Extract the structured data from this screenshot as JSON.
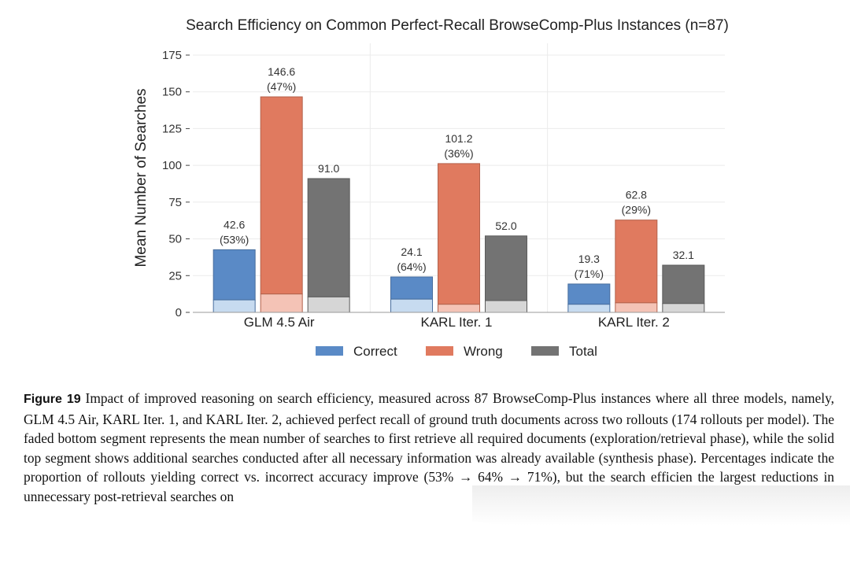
{
  "chart_data": {
    "type": "bar",
    "title": "Search Efficiency on Common Perfect-Recall BrowseComp-Plus Instances (n=87)",
    "ylabel": "Mean Number of Searches",
    "xlabel": "",
    "ylim": [
      0,
      175
    ],
    "yticks": [
      0,
      25,
      50,
      75,
      100,
      125,
      150,
      175
    ],
    "grid": true,
    "categories": [
      "GLM 4.5 Air",
      "KARL Iter. 1",
      "KARL Iter. 2"
    ],
    "series": [
      {
        "name": "Correct",
        "color": "#5a8ac6",
        "faded_color": "#c7dbf0",
        "values": [
          42.6,
          24.1,
          19.3
        ],
        "retrieval_values": [
          8.5,
          9.0,
          5.5
        ],
        "value_labels": [
          "42.6",
          "24.1",
          "19.3"
        ],
        "pct_labels": [
          "(53%)",
          "(64%)",
          "(71%)"
        ]
      },
      {
        "name": "Wrong",
        "color": "#e07a5f",
        "faded_color": "#f4c3b6",
        "values": [
          146.6,
          101.2,
          62.8
        ],
        "retrieval_values": [
          12.5,
          5.5,
          6.5
        ],
        "value_labels": [
          "146.6",
          "101.2",
          "62.8"
        ],
        "pct_labels": [
          "(47%)",
          "(36%)",
          "(29%)"
        ]
      },
      {
        "name": "Total",
        "color": "#737373",
        "faded_color": "#d6d6d6",
        "values": [
          91.0,
          52.0,
          32.1
        ],
        "retrieval_values": [
          10.5,
          8.0,
          6.0
        ],
        "value_labels": [
          "91.0",
          "52.0",
          "32.1"
        ],
        "pct_labels": [
          "",
          "",
          ""
        ]
      }
    ],
    "legend": [
      "Correct",
      "Wrong",
      "Total"
    ],
    "legend_position": "bottom-center"
  },
  "caption": {
    "label": "Figure 19",
    "text": "Impact of improved reasoning on search efficiency, measured across 87 BrowseComp-Plus instances where all three models, namely, GLM 4.5 Air, KARL Iter. 1, and KARL Iter. 2, achieved perfect recall of ground truth documents across two rollouts (174 rollouts per model). The faded bottom segment represents the mean number of searches to first retrieve all required documents (exploration/retrieval phase), while the solid top segment shows additional searches conducted after all necessary information was already available (synthesis phase). Percentages indicate the proportion of rollouts yielding correct vs. incorrect accuracy improve (53% → 64% → 71%), but the search efficien the largest reductions in unnecessary post-retrieval searches on"
  }
}
